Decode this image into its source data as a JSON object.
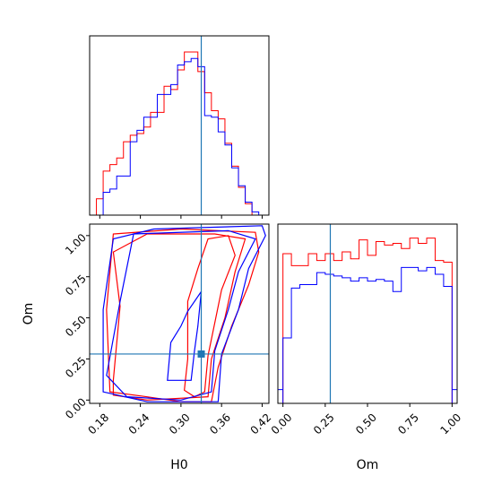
{
  "chart_data": {
    "type": "corner",
    "colors": {
      "series1": "#ff0000",
      "series2": "#0000ff",
      "truth": "#1f77b4",
      "axis": "#000000"
    },
    "params": [
      "H0",
      "Om"
    ],
    "truths": {
      "H0": 0.33,
      "Om": 0.28
    },
    "axes": {
      "H0": {
        "label": "H0",
        "range": [
          0.165,
          0.43
        ],
        "ticks": [
          "0.18",
          "0.24",
          "0.30",
          "0.36",
          "0.42"
        ],
        "tick_values": [
          0.18,
          0.24,
          0.3,
          0.36,
          0.42
        ]
      },
      "Om": {
        "label": "Om",
        "range": [
          -0.02,
          1.07
        ],
        "ticks": [
          "0.00",
          "0.25",
          "0.50",
          "0.75",
          "1.00"
        ],
        "tick_values": [
          0.0,
          0.25,
          0.5,
          0.75,
          1.0
        ]
      },
      "Om_hist": {
        "range": [
          -0.03,
          1.03
        ]
      }
    },
    "hist_H0": {
      "bin_edges": [
        0.165,
        0.175,
        0.185,
        0.195,
        0.205,
        0.215,
        0.225,
        0.235,
        0.245,
        0.255,
        0.265,
        0.275,
        0.285,
        0.295,
        0.305,
        0.315,
        0.325,
        0.335,
        0.345,
        0.355,
        0.365,
        0.375,
        0.385,
        0.395,
        0.405,
        0.415,
        0.425
      ],
      "series": [
        {
          "values": [
            0.0,
            0.1,
            0.27,
            0.31,
            0.35,
            0.45,
            0.49,
            0.5,
            0.54,
            0.63,
            0.63,
            0.79,
            0.77,
            0.89,
            1.0,
            1.0,
            0.88,
            0.75,
            0.64,
            0.59,
            0.44,
            0.3,
            0.17,
            0.07,
            0.0,
            0.0
          ]
        },
        {
          "values": [
            0.0,
            0.0,
            0.14,
            0.16,
            0.24,
            0.24,
            0.45,
            0.52,
            0.6,
            0.6,
            0.74,
            0.74,
            0.8,
            0.92,
            0.94,
            0.96,
            0.91,
            0.61,
            0.6,
            0.51,
            0.43,
            0.29,
            0.18,
            0.08,
            0.02,
            0.0
          ]
        }
      ]
    },
    "hist_Om": {
      "bin_edges": [
        0.0,
        0.05,
        0.1,
        0.15,
        0.2,
        0.25,
        0.3,
        0.35,
        0.4,
        0.45,
        0.5,
        0.55,
        0.6,
        0.65,
        0.7,
        0.75,
        0.8,
        0.85,
        0.9,
        0.95,
        1.0
      ],
      "series": [
        {
          "values": [
            0.87,
            0.8,
            0.8,
            0.87,
            0.83,
            0.87,
            0.83,
            0.88,
            0.84,
            0.95,
            0.86,
            0.94,
            0.92,
            0.93,
            0.9,
            0.96,
            0.93,
            0.96,
            0.83,
            0.82
          ]
        },
        {
          "values": [
            0.38,
            0.67,
            0.69,
            0.69,
            0.76,
            0.75,
            0.74,
            0.73,
            0.71,
            0.73,
            0.71,
            0.72,
            0.71,
            0.65,
            0.79,
            0.79,
            0.77,
            0.79,
            0.75,
            0.68
          ]
        }
      ]
    },
    "contours": [
      {
        "series": "series1",
        "level": "inner",
        "points": [
          [
            0.31,
            0.25
          ],
          [
            0.31,
            0.6
          ],
          [
            0.325,
            0.8
          ],
          [
            0.34,
            0.98
          ],
          [
            0.37,
            1.0
          ],
          [
            0.38,
            0.88
          ],
          [
            0.36,
            0.67
          ],
          [
            0.35,
            0.47
          ],
          [
            0.34,
            0.27
          ],
          [
            0.335,
            0.05
          ],
          [
            0.32,
            0.02
          ],
          [
            0.305,
            0.06
          ]
        ]
      },
      {
        "series": "series1",
        "level": "middle",
        "points": [
          [
            0.2,
            0.12
          ],
          [
            0.21,
            0.57
          ],
          [
            0.2,
            0.9
          ],
          [
            0.25,
            1.01
          ],
          [
            0.35,
            1.01
          ],
          [
            0.395,
            0.98
          ],
          [
            0.38,
            0.78
          ],
          [
            0.365,
            0.5
          ],
          [
            0.345,
            0.25
          ],
          [
            0.34,
            0.02
          ],
          [
            0.25,
            0.0
          ],
          [
            0.2,
            0.03
          ]
        ]
      },
      {
        "series": "series1",
        "level": "outer",
        "points": [
          [
            0.195,
            0.05
          ],
          [
            0.19,
            0.55
          ],
          [
            0.2,
            1.01
          ],
          [
            0.3,
            1.04
          ],
          [
            0.41,
            1.02
          ],
          [
            0.415,
            0.9
          ],
          [
            0.4,
            0.7
          ],
          [
            0.375,
            0.45
          ],
          [
            0.355,
            0.2
          ],
          [
            0.345,
            -0.01
          ],
          [
            0.3,
            -0.01
          ],
          [
            0.25,
            0.02
          ]
        ]
      },
      {
        "series": "series2",
        "level": "inner",
        "points": [
          [
            0.28,
            0.12
          ],
          [
            0.285,
            0.35
          ],
          [
            0.3,
            0.45
          ],
          [
            0.31,
            0.54
          ],
          [
            0.33,
            0.66
          ],
          [
            0.325,
            0.45
          ],
          [
            0.32,
            0.3
          ],
          [
            0.315,
            0.12
          ]
        ]
      },
      {
        "series": "series2",
        "level": "middle",
        "points": [
          [
            0.19,
            0.15
          ],
          [
            0.21,
            0.6
          ],
          [
            0.23,
            1.01
          ],
          [
            0.37,
            1.03
          ],
          [
            0.41,
            0.98
          ],
          [
            0.385,
            0.78
          ],
          [
            0.37,
            0.55
          ],
          [
            0.35,
            0.3
          ],
          [
            0.345,
            0.05
          ],
          [
            0.3,
            0.0
          ],
          [
            0.22,
            0.02
          ]
        ]
      },
      {
        "series": "series2",
        "level": "outer",
        "points": [
          [
            0.185,
            0.05
          ],
          [
            0.185,
            0.55
          ],
          [
            0.2,
            0.98
          ],
          [
            0.26,
            1.04
          ],
          [
            0.42,
            1.06
          ],
          [
            0.425,
            1.0
          ],
          [
            0.4,
            0.8
          ],
          [
            0.385,
            0.55
          ],
          [
            0.36,
            0.28
          ],
          [
            0.355,
            -0.01
          ],
          [
            0.25,
            -0.01
          ]
        ]
      }
    ]
  }
}
